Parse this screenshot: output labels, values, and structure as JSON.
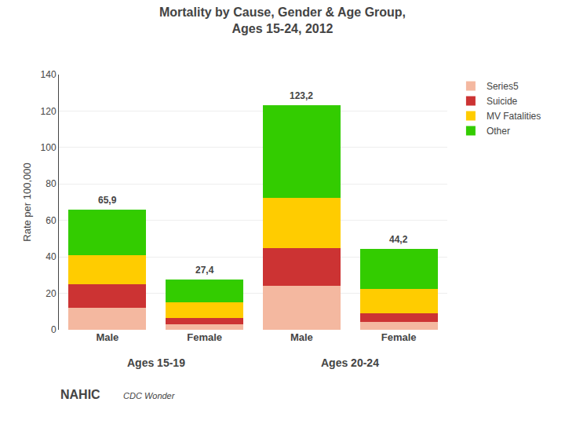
{
  "chart_data": {
    "type": "bar",
    "stacked": true,
    "title": "Mortality by Cause, Gender & Age Group,\nAges 15-24, 2012",
    "ylabel": "Rate per 100,000",
    "categories": [
      "Male",
      "Female",
      "Male",
      "Female"
    ],
    "group_labels": [
      "Ages 15-19",
      "Ages 20-24"
    ],
    "series": [
      {
        "name": "Series5",
        "color": "#f4b8a0",
        "values": [
          12.0,
          3.0,
          24.0,
          4.5
        ]
      },
      {
        "name": "Suicide",
        "color": "#cc3333",
        "values": [
          13.0,
          3.5,
          21.0,
          4.5
        ]
      },
      {
        "name": "MV Fatalities",
        "color": "#ffcc00",
        "values": [
          16.0,
          8.5,
          27.5,
          13.5
        ]
      },
      {
        "name": "Other",
        "color": "#33cc00",
        "values": [
          24.9,
          12.4,
          50.7,
          21.7
        ]
      }
    ],
    "totals": [
      65.9,
      27.4,
      123.2,
      44.2
    ],
    "total_labels": [
      "65,9",
      "27,4",
      "123,2",
      "44,2"
    ],
    "ylim": [
      0,
      140
    ],
    "yticks": [
      0,
      20,
      40,
      60,
      80,
      100,
      120,
      140
    ],
    "grid": true,
    "legend": "right",
    "annotations": [
      "NAHIC",
      "CDC Wonder"
    ]
  }
}
